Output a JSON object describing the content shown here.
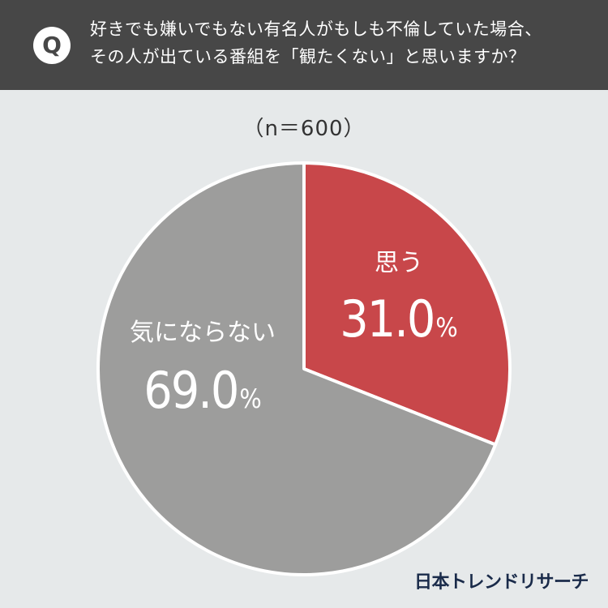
{
  "question": {
    "badge": "Q",
    "line1": "好きでも嫌いでもない有名人がもしも不倫していた場合、",
    "line2": "その人が出ている番組を「観たくない」と思いますか？"
  },
  "sample_size": "（n＝600）",
  "brand": "日本トレンドリサーチ",
  "colors": {
    "header": "#474747",
    "accent": "#c8474a",
    "neutral": "#9d9d9c",
    "background": "#e6e9ea"
  },
  "chart_data": {
    "type": "pie",
    "title": "",
    "slices": [
      {
        "label": "思う",
        "value": 31.0,
        "display": "31.0",
        "unit": "%",
        "color": "#c8474a"
      },
      {
        "label": "気にならない",
        "value": 69.0,
        "display": "69.0",
        "unit": "%",
        "color": "#9d9d9c"
      }
    ],
    "start_angle": "12 o'clock",
    "direction": "clockwise",
    "legend": "none"
  }
}
